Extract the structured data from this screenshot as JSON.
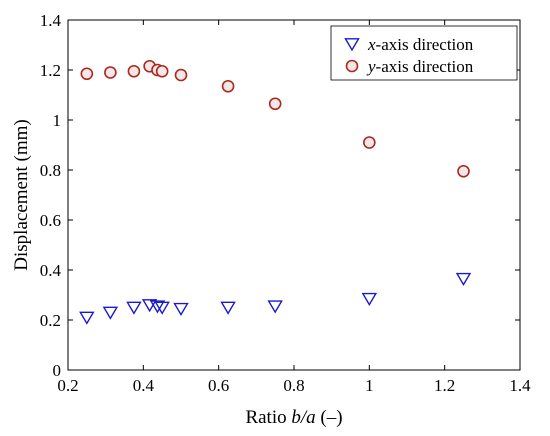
{
  "chart_data": {
    "type": "scatter",
    "title": "",
    "xlabel": {
      "prefix": "Ratio ",
      "italic": "b/a",
      "suffix": " (–)"
    },
    "ylabel": "Displacement (mm)",
    "xlim": [
      0.2,
      1.4
    ],
    "ylim": [
      0,
      1.4
    ],
    "xticks": [
      "0.2",
      "0.4",
      "0.6",
      "0.8",
      "1",
      "1.2",
      "1.4"
    ],
    "yticks": [
      "0",
      "0.2",
      "0.4",
      "0.6",
      "0.8",
      "1",
      "1.2",
      "1.4"
    ],
    "grid": false,
    "legend_position": "top-right",
    "series": [
      {
        "name_italic": "x",
        "name_rest": "-axis direction",
        "marker": "triangle-down",
        "color": "#1a1acc",
        "x": [
          0.25,
          0.3125,
          0.375,
          0.4167,
          0.4375,
          0.45,
          0.5,
          0.625,
          0.75,
          1.0,
          1.25
        ],
        "y": [
          0.21,
          0.23,
          0.25,
          0.26,
          0.255,
          0.25,
          0.245,
          0.25,
          0.255,
          0.285,
          0.365
        ]
      },
      {
        "name_italic": "y",
        "name_rest": "-axis direction",
        "marker": "circle",
        "color": "#a82a1c",
        "fill": "#f5e6ea",
        "x": [
          0.25,
          0.3125,
          0.375,
          0.4167,
          0.4375,
          0.45,
          0.5,
          0.625,
          0.75,
          1.0,
          1.25
        ],
        "y": [
          1.185,
          1.19,
          1.195,
          1.215,
          1.2,
          1.195,
          1.18,
          1.135,
          1.065,
          0.91,
          0.795
        ]
      }
    ]
  }
}
